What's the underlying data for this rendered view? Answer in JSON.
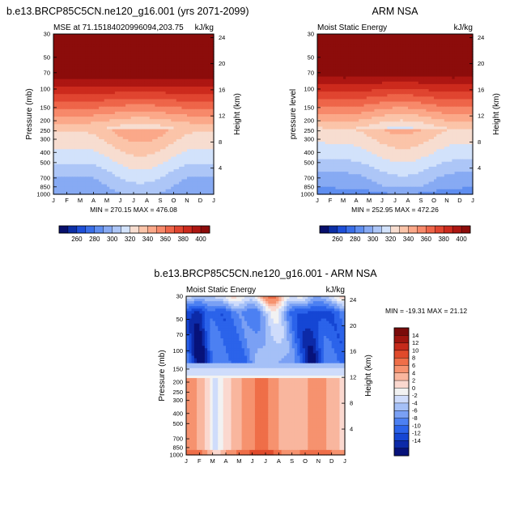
{
  "chart_data": [
    {
      "type": "heatmap",
      "id": "model",
      "title": "b.e13.BRCP85C5CN.ne120_g16.001 (yrs 2071-2099)",
      "left_label": "MSE at 71.15184020996094,203.75",
      "right_label": "kJ/kg",
      "ylabel_left": "Pressure (mb)",
      "ylabel_right": "Height (km)",
      "x_ticks": [
        "J",
        "F",
        "M",
        "A",
        "M",
        "J",
        "J",
        "A",
        "S",
        "O",
        "N",
        "D",
        "J"
      ],
      "y_ticks": [
        "30",
        "50",
        "70",
        "100",
        "150",
        "200",
        "250",
        "300",
        "400",
        "500",
        "700",
        "850",
        "1000"
      ],
      "height_ticks": [
        "24",
        "20",
        "16",
        "12",
        "8",
        "4"
      ],
      "stats": "MIN = 270.15 MAX = 476.08",
      "min": 270.15,
      "max": 476.08,
      "colorbar": {
        "orientation": "horizontal",
        "labels": [
          "260",
          "280",
          "300",
          "320",
          "340",
          "360",
          "380",
          "400"
        ]
      }
    },
    {
      "type": "heatmap",
      "id": "obs",
      "title": "ARM NSA",
      "left_label": "Moist Static Energy",
      "right_label": "kJ/kg",
      "ylabel_left": "pressure level",
      "ylabel_right": "Height (km)",
      "x_ticks": [
        "J",
        "F",
        "M",
        "A",
        "M",
        "J",
        "J",
        "A",
        "S",
        "O",
        "N",
        "D",
        "J"
      ],
      "y_ticks": [
        "30",
        "50",
        "70",
        "100",
        "150",
        "200",
        "250",
        "300",
        "400",
        "500",
        "700",
        "850",
        "1000"
      ],
      "height_ticks": [
        "24",
        "20",
        "16",
        "12",
        "8",
        "4"
      ],
      "stats": "MIN = 252.95 MAX = 472.26",
      "min": 252.95,
      "max": 472.26,
      "colorbar": {
        "orientation": "horizontal",
        "labels": [
          "260",
          "280",
          "300",
          "320",
          "340",
          "360",
          "380",
          "400"
        ]
      }
    },
    {
      "type": "heatmap",
      "id": "diff",
      "title": "b.e13.BRCP85C5CN.ne120_g16.001 - ARM NSA",
      "left_label": "Moist Static Energy",
      "right_label": "kJ/kg",
      "ylabel_left": "Pressure (mb)",
      "ylabel_right": "Height (km)",
      "x_ticks": [
        "J",
        "F",
        "M",
        "A",
        "M",
        "J",
        "J",
        "A",
        "S",
        "O",
        "N",
        "D",
        "J"
      ],
      "y_ticks": [
        "30",
        "50",
        "70",
        "100",
        "150",
        "200",
        "250",
        "300",
        "400",
        "500",
        "700",
        "850",
        "1000"
      ],
      "height_ticks": [
        "24",
        "20",
        "16",
        "12",
        "8",
        "4"
      ],
      "stats": "MIN = -19.31 MAX =  21.12",
      "min": -19.31,
      "max": 21.12,
      "colorbar": {
        "orientation": "vertical",
        "labels": [
          "14",
          "12",
          "10",
          "8",
          "6",
          "4",
          "2",
          "0",
          "-2",
          "-4",
          "-6",
          "-8",
          "-10",
          "-12",
          "-14"
        ]
      }
    }
  ],
  "colors": {
    "seq": [
      "#08106b",
      "#0c2fa6",
      "#1e4fd8",
      "#3a6ee8",
      "#5f8ef0",
      "#87aaf3",
      "#adc6f7",
      "#d2e2fb",
      "#f7ddd0",
      "#fbc4a9",
      "#fba889",
      "#f7896a",
      "#ee6549",
      "#e04530",
      "#cc2a1d",
      "#ad1612",
      "#8c0c0b"
    ],
    "div": [
      "#07127a",
      "#0c2aa8",
      "#1546d4",
      "#2b63ea",
      "#4c80f2",
      "#7aa0f4",
      "#a5c0f7",
      "#cfdcfb",
      "#f2f2f2",
      "#fbd8cf",
      "#f9b69e",
      "#f6926f",
      "#ef6e48",
      "#e04a2b",
      "#c52a1b",
      "#9e150f",
      "#7a0b0a"
    ]
  }
}
